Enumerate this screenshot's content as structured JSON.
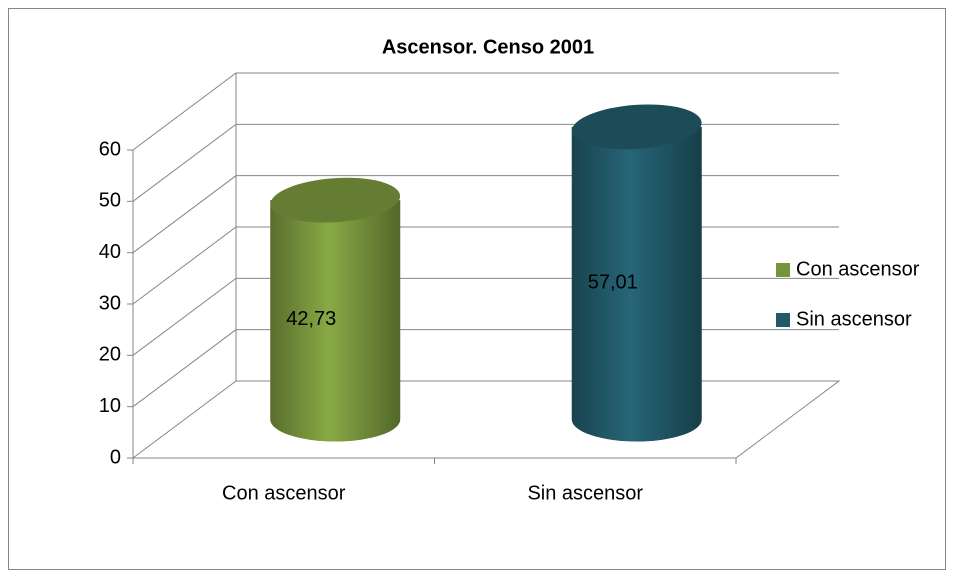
{
  "chart_data": {
    "type": "bar3d-cylinder",
    "title": "Ascensor. Censo 2001",
    "categories": [
      "Con ascensor",
      "Sin ascensor"
    ],
    "values": [
      42.73,
      57.01
    ],
    "value_labels": [
      "42,73",
      "57,01"
    ],
    "colors": [
      "#77933c",
      "#215968"
    ],
    "ylim": [
      0,
      60
    ],
    "yticks": [
      0,
      10,
      20,
      30,
      40,
      50,
      60
    ],
    "grid": true,
    "legend": "right"
  }
}
